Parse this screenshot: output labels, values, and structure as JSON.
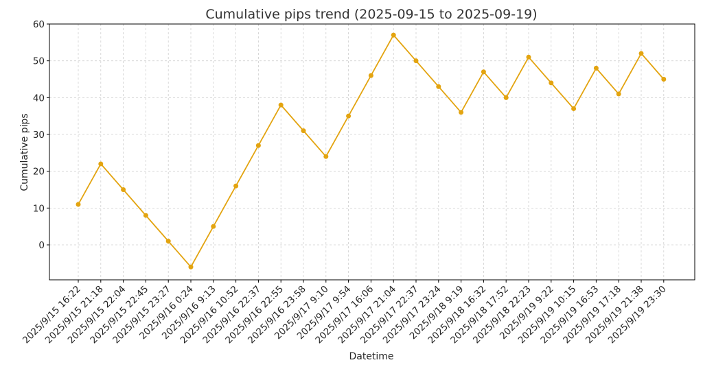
{
  "chart_data": {
    "type": "line",
    "title": "Cumulative pips trend (2025-09-15 to 2025-09-19)",
    "xlabel": "Datetime",
    "ylabel": "Cumulative pips",
    "ylim": [
      -9.5,
      60
    ],
    "yticks": [
      0,
      10,
      20,
      30,
      40,
      50,
      60
    ],
    "grid": true,
    "color": "#E3A410",
    "categories": [
      "2025/9/15 16:22",
      "2025/9/15 21:18",
      "2025/9/15 22:04",
      "2025/9/15 22:45",
      "2025/9/15 23:27",
      "2025/9/16 0:24",
      "2025/9/16 9:13",
      "2025/9/16 10:52",
      "2025/9/16 22:37",
      "2025/9/16 22:55",
      "2025/9/16 23:58",
      "2025/9/17 9:10",
      "2025/9/17 9:54",
      "2025/9/17 16:06",
      "2025/9/17 21:04",
      "2025/9/17 22:37",
      "2025/9/17 23:24",
      "2025/9/18 9:19",
      "2025/9/18 16:32",
      "2025/9/18 17:52",
      "2025/9/18 22:23",
      "2025/9/19 9:22",
      "2025/9/19 10:15",
      "2025/9/19 16:53",
      "2025/9/19 17:18",
      "2025/9/19 21:38",
      "2025/9/19 23:30"
    ],
    "values": [
      11,
      22,
      15,
      8,
      1,
      -6,
      5,
      16,
      27,
      38,
      31,
      24,
      35,
      46,
      57,
      50,
      43,
      36,
      47,
      40,
      51,
      44,
      37,
      48,
      41,
      52,
      45
    ]
  }
}
